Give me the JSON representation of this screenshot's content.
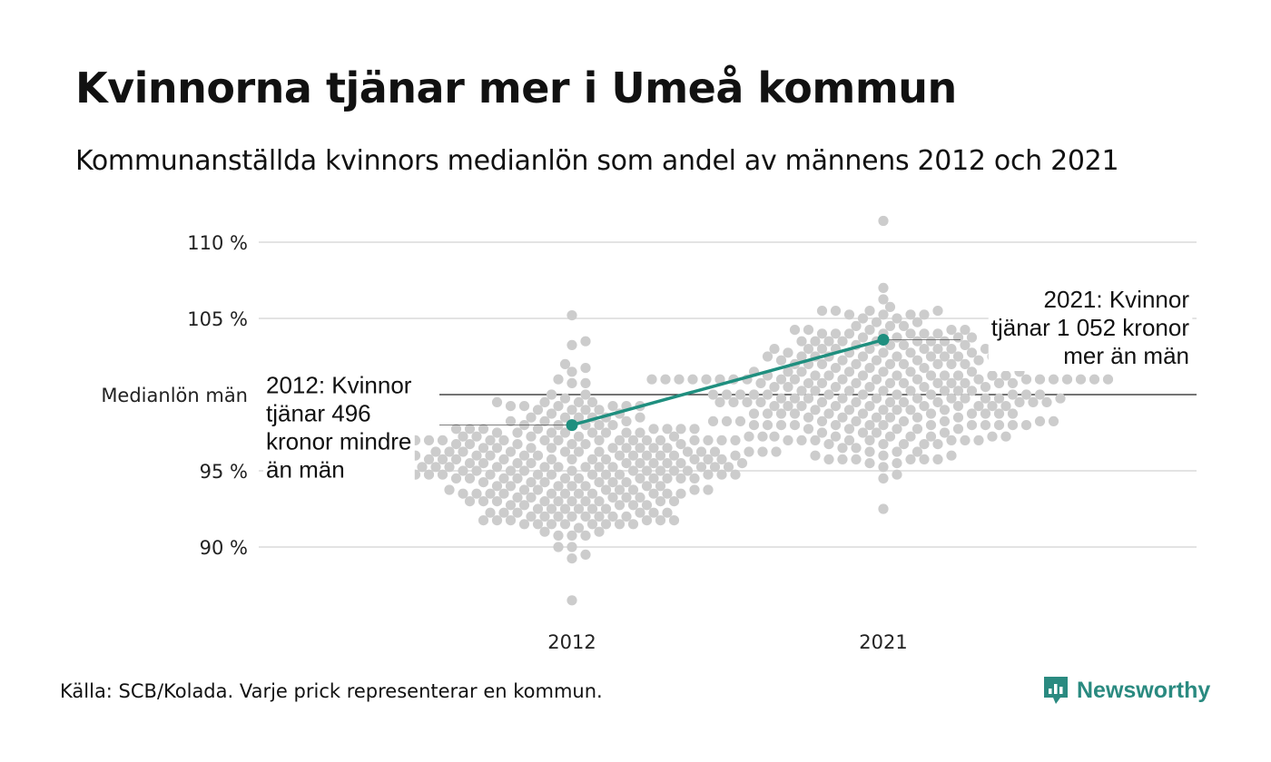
{
  "title": "Kvinnorna tjänar mer i Umeå kommun",
  "subtitle": "Kommunanställda kvinnors medianlön som andel av männens 2012 och 2021",
  "source": "Källa: SCB/Kolada. Varje prick representerar en kommun.",
  "logo": {
    "text": "Newsworthy",
    "icon": "newsworthy-logo-icon",
    "color": "#2a8a80"
  },
  "colors": {
    "dots": "#cccccc",
    "highlight": "#1f8f7f",
    "grid": "#e3e3e3",
    "reference": "#222222"
  },
  "chart_data": {
    "type": "scatter",
    "subtype": "beeswarm",
    "categories": [
      "2012",
      "2021"
    ],
    "ylim": [
      86,
      112
    ],
    "y_ticks": [
      {
        "value": 90,
        "label": "90 %"
      },
      {
        "value": 95,
        "label": "95 %"
      },
      {
        "value": 100,
        "label": "Medianlön män"
      },
      {
        "value": 105,
        "label": "105 %"
      },
      {
        "value": 110,
        "label": "110 %"
      }
    ],
    "reference_line": 100,
    "grid": true,
    "distributions": [
      {
        "category": "2012",
        "min": 86.5,
        "max": 105.2,
        "median_approx": 95.5
      },
      {
        "category": "2021",
        "min": 92.5,
        "max": 111.4,
        "median_approx": 100.5
      }
    ],
    "highlight": {
      "points": [
        {
          "x": "2012",
          "y": 98.0
        },
        {
          "x": "2021",
          "y": 103.6
        }
      ]
    },
    "annotations": [
      {
        "x": "2012",
        "y": 98.0,
        "lines": [
          "2012: Kvinnor",
          "tjänar 496",
          "kronor mindre",
          "än män"
        ],
        "side": "left"
      },
      {
        "x": "2021",
        "y": 103.6,
        "lines": [
          "2021: Kvinnor",
          "tjänar 1 052 kronor",
          "mer än män"
        ],
        "side": "right"
      }
    ]
  }
}
